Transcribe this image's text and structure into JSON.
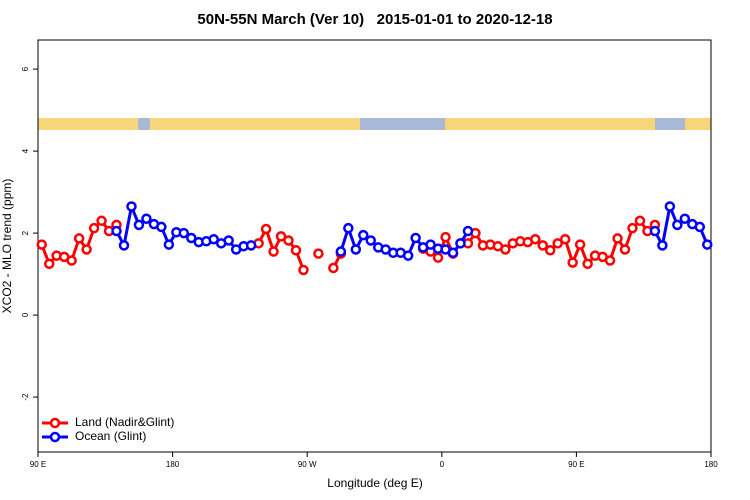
{
  "chart_data": {
    "type": "line",
    "title": "50N-55N March (Ver 10)   2015-01-01 to 2020-12-18",
    "x_label": "Longitude (deg E)",
    "y_label": "XCO2 - MLO trend (ppm)",
    "x": [
      92.5,
      97.5,
      102.5,
      107.5,
      112.5,
      117.5,
      122.5,
      127.5,
      132.5,
      137.5,
      142.5,
      147.5,
      152.5,
      157.5,
      162.5,
      167.5,
      172.5,
      177.5,
      182.5,
      187.5,
      192.5,
      197.5,
      202.5,
      207.5,
      212.5,
      217.5,
      222.5,
      227.5,
      232.5,
      237.5,
      242.5,
      247.5,
      252.5,
      257.5,
      262.5,
      267.5,
      272.5,
      277.5,
      282.5,
      287.5,
      292.5,
      297.5,
      302.5,
      307.5,
      312.5,
      317.5,
      322.5,
      327.5,
      332.5,
      337.5,
      342.5,
      347.5,
      352.5,
      357.5,
      362.5,
      367.5,
      372.5,
      377.5,
      382.5,
      387.5,
      392.5,
      397.5,
      402.5,
      407.5,
      412.5,
      417.5,
      422.5,
      427.5,
      432.5,
      437.5,
      442.5,
      447.5,
      452.5,
      457.5,
      462.5,
      467.5,
      472.5,
      477.5,
      482.5,
      487.5,
      492.5,
      497.5,
      502.5,
      507.5,
      512.5,
      517.5,
      522.5,
      527.5,
      532.5,
      537.5
    ],
    "series": [
      {
        "name": "Land (Nadir&Glint)",
        "color": "#ff0000",
        "values": [
          1.72,
          1.25,
          1.45,
          1.42,
          1.33,
          1.87,
          1.6,
          2.12,
          2.3,
          2.05,
          2.2,
          null,
          null,
          null,
          null,
          null,
          null,
          null,
          null,
          null,
          null,
          null,
          null,
          null,
          null,
          null,
          null,
          null,
          null,
          1.75,
          2.1,
          1.55,
          1.92,
          1.82,
          1.58,
          1.1,
          null,
          1.5,
          null,
          1.15,
          1.5,
          null,
          null,
          null,
          null,
          null,
          null,
          null,
          null,
          null,
          null,
          1.62,
          1.55,
          1.4,
          1.9,
          1.5,
          1.75,
          1.75,
          2.0,
          1.7,
          1.72,
          1.68,
          1.6,
          1.75,
          1.8,
          1.78,
          1.85,
          1.7,
          1.58,
          1.75,
          1.85,
          1.28,
          1.72,
          1.25,
          1.45,
          1.42,
          1.33,
          1.87,
          1.6,
          2.12,
          2.3,
          2.05,
          2.2,
          null,
          null,
          null,
          null,
          null,
          null,
          null
        ]
      },
      {
        "name": "Ocean (Glint)",
        "color": "#0000ff",
        "values": [
          null,
          null,
          null,
          null,
          null,
          null,
          null,
          null,
          null,
          null,
          2.05,
          1.7,
          2.65,
          2.2,
          2.35,
          2.22,
          2.15,
          1.72,
          2.02,
          2.0,
          1.88,
          1.78,
          1.8,
          1.85,
          1.75,
          1.82,
          1.6,
          1.68,
          1.7,
          null,
          null,
          null,
          null,
          null,
          null,
          null,
          null,
          null,
          null,
          null,
          1.55,
          2.12,
          1.6,
          1.95,
          1.82,
          1.65,
          1.6,
          1.52,
          1.52,
          1.45,
          1.88,
          1.65,
          1.72,
          1.62,
          1.6,
          1.52,
          1.75,
          2.05,
          null,
          null,
          null,
          null,
          null,
          null,
          null,
          null,
          null,
          null,
          null,
          null,
          null,
          null,
          null,
          null,
          null,
          null,
          null,
          null,
          null,
          null,
          null,
          null,
          2.05,
          1.7,
          2.65,
          2.2,
          2.35,
          2.22,
          2.15,
          1.72
        ]
      }
    ],
    "xlim": [
      90,
      540
    ],
    "xticks": [
      {
        "value": 90,
        "label": "90 E"
      },
      180,
      {
        "value": 270,
        "label": "90 W"
      },
      {
        "value": 360,
        "label": "0"
      },
      {
        "value": 450,
        "label": "90 E"
      },
      {
        "value": 540,
        "label": "180"
      }
    ],
    "ylim": [
      -3.34,
      6.71
    ],
    "yticks": [
      -2,
      0,
      2,
      4,
      6
    ],
    "legend": "bottom-left"
  }
}
